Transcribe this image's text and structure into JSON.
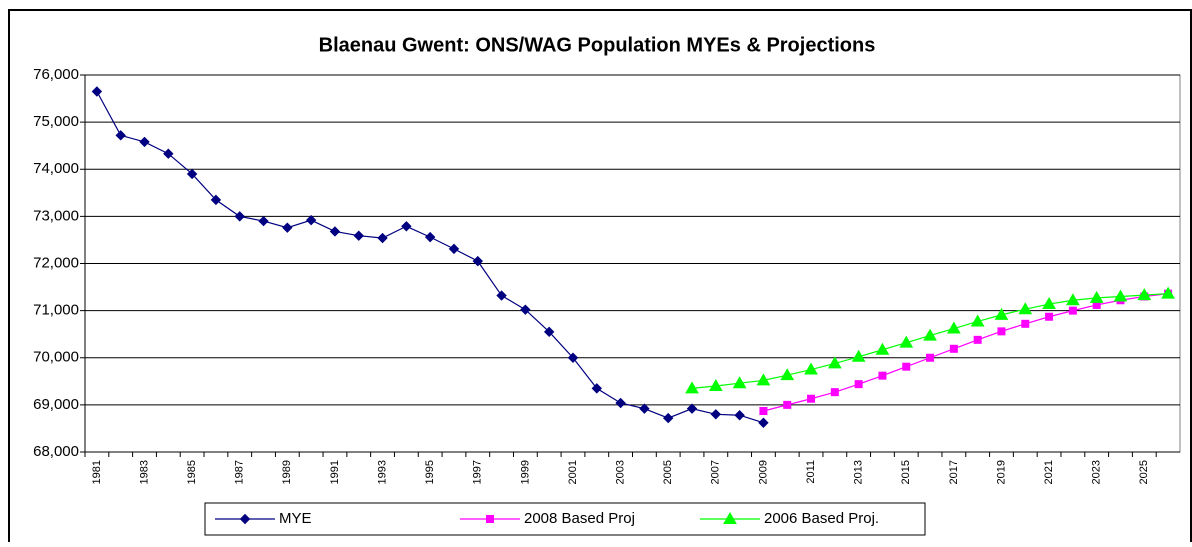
{
  "chart_data": {
    "type": "line",
    "title": "Blaenau Gwent: ONS/WAG Population MYEs & Projections",
    "categories": [
      "1981",
      null,
      "1983",
      null,
      "1985",
      null,
      "1987",
      null,
      "1989",
      null,
      "1991",
      null,
      "1993",
      null,
      "1995",
      null,
      "1997",
      null,
      "1999",
      null,
      "2001",
      null,
      "2003",
      null,
      "2005",
      null,
      "2007",
      null,
      "2009",
      null,
      "2011",
      null,
      "2013",
      null,
      "2015",
      null,
      "2017",
      null,
      "2019",
      null,
      "2021",
      null,
      "2023",
      null,
      "2025",
      null
    ],
    "series": [
      {
        "name": "MYE",
        "color": "#000080",
        "marker": "diamond",
        "values": [
          75650,
          74720,
          74580,
          74330,
          73900,
          73350,
          73000,
          72900,
          72760,
          72920,
          72680,
          72590,
          72540,
          72790,
          72560,
          72310,
          72050,
          71320,
          71020,
          70550,
          70000,
          69350,
          69040,
          68920,
          68720,
          68920,
          68800,
          68780,
          68620,
          null,
          null,
          null,
          null,
          null,
          null,
          null,
          null,
          null,
          null,
          null,
          null,
          null,
          null,
          null,
          null,
          null
        ]
      },
      {
        "name": "2008 Based Proj",
        "color": "#ff00ff",
        "marker": "square",
        "values": [
          null,
          null,
          null,
          null,
          null,
          null,
          null,
          null,
          null,
          null,
          null,
          null,
          null,
          null,
          null,
          null,
          null,
          null,
          null,
          null,
          null,
          null,
          null,
          null,
          null,
          null,
          null,
          null,
          68870,
          69000,
          69130,
          69270,
          69440,
          69620,
          69810,
          70000,
          70190,
          70380,
          70560,
          70720,
          70870,
          71000,
          71120,
          71220,
          71300,
          71360
        ]
      },
      {
        "name": "2006 Based Proj.",
        "color": "#00ff00",
        "marker": "triangle",
        "values": [
          null,
          null,
          null,
          null,
          null,
          null,
          null,
          null,
          null,
          null,
          null,
          null,
          null,
          null,
          null,
          null,
          null,
          null,
          null,
          null,
          null,
          null,
          null,
          null,
          null,
          69350,
          69400,
          69460,
          69520,
          69630,
          69750,
          69880,
          70020,
          70170,
          70320,
          70470,
          70620,
          70770,
          70910,
          71030,
          71140,
          71220,
          71270,
          71300,
          71330,
          71360
        ]
      }
    ],
    "ylim": [
      68000,
      76000
    ],
    "yticks": [
      {
        "value": 68000,
        "label": "68,000"
      },
      {
        "value": 69000,
        "label": "69,000"
      },
      {
        "value": 70000,
        "label": "70,000"
      },
      {
        "value": 71000,
        "label": "71,000"
      },
      {
        "value": 72000,
        "label": "72,000"
      },
      {
        "value": 73000,
        "label": "73,000"
      },
      {
        "value": 74000,
        "label": "74,000"
      },
      {
        "value": 75000,
        "label": "75,000"
      },
      {
        "value": 76000,
        "label": "76,000"
      }
    ],
    "grid": true
  }
}
